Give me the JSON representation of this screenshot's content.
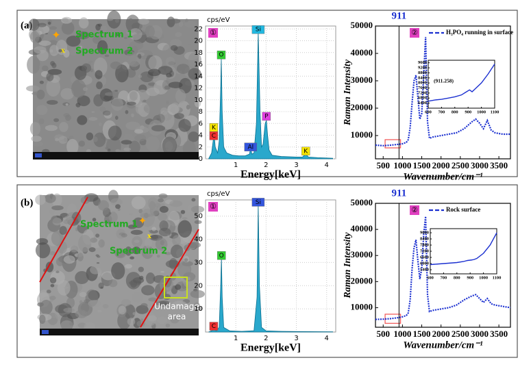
{
  "panels": [
    {
      "label": "(a)",
      "image": {
        "texts": [
          "Spectrum 1",
          "Spectrum 2"
        ]
      }
    },
    {
      "label": "(b)",
      "image": {
        "texts": [
          "Spectrum 1",
          "Spectrum 2"
        ],
        "annotation_lines": [
          "Undamage",
          "area"
        ]
      }
    }
  ],
  "chart_data": [
    {
      "type": "eds",
      "panel_tag": "①",
      "y_unit": "cps/eV",
      "xlabel": "Energy[keV]",
      "color": "#2aa8cc",
      "grid": true,
      "xlim": [
        0,
        4.3
      ],
      "ylim": [
        0,
        22.5
      ],
      "xticks": [
        1,
        2,
        3,
        4
      ],
      "yticks": [
        0,
        2,
        4,
        6,
        8,
        10,
        12,
        14,
        16,
        18,
        20,
        22
      ],
      "x": [
        0.1,
        0.2,
        0.25,
        0.28,
        0.32,
        0.4,
        0.45,
        0.5,
        0.52,
        0.55,
        0.6,
        0.7,
        0.9,
        1.1,
        1.3,
        1.45,
        1.49,
        1.53,
        1.6,
        1.68,
        1.74,
        1.8,
        1.85,
        1.9,
        1.97,
        2.01,
        2.05,
        2.1,
        2.2,
        2.5,
        3.0,
        3.2,
        3.31,
        3.4,
        3.7,
        4.2
      ],
      "values": [
        0,
        1,
        3,
        4.5,
        2,
        1,
        3,
        12,
        17,
        8,
        2,
        1,
        0.6,
        0.5,
        0.5,
        0.8,
        1.8,
        0.8,
        1,
        6,
        21.5,
        8,
        2,
        2.5,
        6,
        6.5,
        4,
        1.5,
        0.6,
        0.4,
        0.3,
        0.3,
        0.8,
        0.3,
        0.2,
        0.1
      ],
      "peak_labels": [
        {
          "text": "K",
          "x": 0.27,
          "y": 5.3,
          "color": "#f5e400"
        },
        {
          "text": "C",
          "x": 0.27,
          "y": 3.9,
          "color": "#f03030"
        },
        {
          "text": "O",
          "x": 0.52,
          "y": 17.6,
          "color": "#33cc33"
        },
        {
          "text": "Al",
          "x": 1.49,
          "y": 2.0,
          "color": "#3355dd"
        },
        {
          "text": "Si",
          "x": 1.74,
          "y": 21.9,
          "color": "#22b8e0"
        },
        {
          "text": "P",
          "x": 2.01,
          "y": 7.2,
          "color": "#e040e0"
        },
        {
          "text": "K",
          "x": 3.31,
          "y": 1.3,
          "color": "#f5e400"
        }
      ]
    },
    {
      "type": "raman",
      "panel_tag": "②",
      "ylabel": "Raman Intensity",
      "xlabel": "Wavenumber/cm⁻¹",
      "legend": "H₃PO₄ running in surface",
      "color": "#1a2fd0",
      "vline": 911,
      "highlight_box": [
        550,
        950,
        5500,
        8500
      ],
      "xlim": [
        300,
        3800
      ],
      "ylim": [
        1500,
        50000
      ],
      "xticks": [
        500,
        1000,
        1500,
        2000,
        2500,
        3000,
        3500
      ],
      "yticks": [
        10000,
        20000,
        30000,
        40000,
        50000
      ],
      "x": [
        300,
        500,
        700,
        900,
        1000,
        1100,
        1150,
        1200,
        1250,
        1300,
        1350,
        1400,
        1450,
        1500,
        1550,
        1600,
        1650,
        1700,
        1800,
        2000,
        2200,
        2400,
        2600,
        2800,
        2900,
        3000,
        3100,
        3200,
        3300,
        3400,
        3600,
        3800
      ],
      "values": [
        6500,
        6300,
        6500,
        6800,
        7000,
        7500,
        8500,
        13000,
        22000,
        30000,
        32000,
        24000,
        16000,
        18000,
        32000,
        46000,
        15000,
        9000,
        9500,
        10000,
        10500,
        11000,
        12500,
        15000,
        16000,
        14500,
        12500,
        15500,
        12000,
        11000,
        10500,
        10500
      ]
    },
    {
      "type": "inset",
      "annotation": "(911.258)",
      "color": "#1a2fd0",
      "xlim": [
        600,
        1100
      ],
      "ylim": [
        6000,
        9800
      ],
      "xticks": [
        600,
        700,
        800,
        900,
        1000,
        1100
      ],
      "yticks": [
        6400,
        6800,
        7200,
        7600,
        8000,
        8400,
        8800,
        9200,
        9600
      ],
      "x": [
        600,
        650,
        700,
        750,
        800,
        850,
        880,
        911,
        930,
        950,
        1000,
        1050,
        1100
      ],
      "values": [
        6550,
        6650,
        6700,
        6800,
        6900,
        7050,
        7250,
        7450,
        7300,
        7500,
        8000,
        8700,
        9500
      ]
    },
    {
      "type": "eds",
      "panel_tag": "①",
      "y_unit": "cps/eV",
      "xlabel": "Energy[keV]",
      "color": "#2aa8cc",
      "grid": true,
      "xlim": [
        0,
        4.3
      ],
      "ylim": [
        0,
        57
      ],
      "xticks": [
        1,
        2,
        3,
        4
      ],
      "yticks": [
        10,
        20,
        30,
        40,
        50
      ],
      "x": [
        0.1,
        0.2,
        0.28,
        0.35,
        0.45,
        0.5,
        0.525,
        0.55,
        0.6,
        0.8,
        1.2,
        1.6,
        1.7,
        1.74,
        1.78,
        1.85,
        2.0,
        2.5,
        3.0,
        4.2
      ],
      "values": [
        0,
        0.5,
        1.5,
        0.5,
        2,
        20,
        32,
        15,
        2,
        0.5,
        0.3,
        0.6,
        15,
        55,
        20,
        2,
        0.5,
        0.3,
        0.2,
        0.1
      ],
      "peak_labels": [
        {
          "text": "C",
          "x": 0.27,
          "y": 2.5,
          "color": "#f03030"
        },
        {
          "text": "O",
          "x": 0.525,
          "y": 33,
          "color": "#33cc33"
        },
        {
          "text": "Si",
          "x": 1.74,
          "y": 56,
          "color": "#3355dd"
        }
      ]
    },
    {
      "type": "raman",
      "panel_tag": "②",
      "ylabel": "Raman Intensity",
      "xlabel": "Wavenumber/cm⁻¹",
      "legend": "Rock surface",
      "color": "#1a2fd0",
      "vline": 911,
      "highlight_box": [
        550,
        950,
        4000,
        7500
      ],
      "xlim": [
        300,
        3800
      ],
      "ylim": [
        2500,
        50000
      ],
      "xticks": [
        500,
        1000,
        1500,
        2000,
        2500,
        3000,
        3500
      ],
      "yticks": [
        10000,
        20000,
        30000,
        40000,
        50000
      ],
      "x": [
        300,
        500,
        700,
        900,
        1000,
        1100,
        1150,
        1200,
        1250,
        1300,
        1350,
        1400,
        1450,
        1500,
        1550,
        1600,
        1650,
        1700,
        1800,
        2000,
        2200,
        2400,
        2600,
        2800,
        2900,
        3000,
        3100,
        3200,
        3300,
        3400,
        3600,
        3800
      ],
      "values": [
        5500,
        5600,
        5800,
        6200,
        6500,
        7000,
        8000,
        13000,
        25000,
        33000,
        36000,
        28000,
        21000,
        25000,
        38000,
        45000,
        15000,
        8500,
        9000,
        9500,
        10000,
        11000,
        13000,
        14500,
        15000,
        13500,
        12000,
        13500,
        11500,
        11000,
        10500,
        10000
      ]
    },
    {
      "type": "inset",
      "color": "#1a2fd0",
      "xlim": [
        600,
        1100
      ],
      "ylim": [
        5000,
        9400
      ],
      "xticks": [
        600,
        700,
        800,
        900,
        1000,
        1100
      ],
      "yticks": [
        5400,
        6000,
        6600,
        7200,
        7800,
        8400,
        9000
      ],
      "x": [
        600,
        650,
        700,
        750,
        800,
        850,
        880,
        911,
        930,
        950,
        1000,
        1050,
        1100
      ],
      "values": [
        5900,
        5950,
        6000,
        6050,
        6100,
        6200,
        6300,
        6350,
        6400,
        6500,
        7000,
        7800,
        9000
      ]
    }
  ]
}
